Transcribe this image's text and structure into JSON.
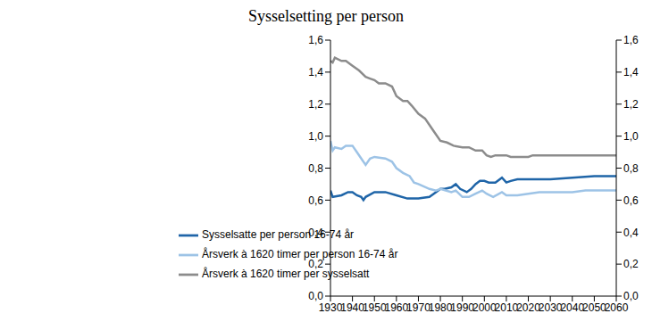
{
  "chart_data": {
    "type": "line",
    "title": "Sysselsetting per person",
    "xlim": [
      1930,
      2060
    ],
    "xticks": [
      1930,
      1940,
      1950,
      1960,
      1970,
      1980,
      1990,
      2000,
      2010,
      2020,
      2030,
      2040,
      2050,
      2060
    ],
    "ylim": [
      0,
      1.6
    ],
    "yticks": [
      {
        "value": 0,
        "label": "0,0"
      },
      {
        "value": 0.2,
        "label": "0,2"
      },
      {
        "value": 0.4,
        "label": "0,4"
      },
      {
        "value": 0.6,
        "label": "0,6"
      },
      {
        "value": 0.8,
        "label": "0,8"
      },
      {
        "value": 1.0,
        "label": "1,0"
      },
      {
        "value": 1.2,
        "label": "1,2"
      },
      {
        "value": 1.4,
        "label": "1,4"
      },
      {
        "value": 1.6,
        "label": "1,6"
      }
    ],
    "y2lim": [
      0,
      1.6
    ],
    "y2ticks": [
      {
        "value": 0,
        "label": "0,0"
      },
      {
        "value": 0.2,
        "label": "0,2"
      },
      {
        "value": 0.4,
        "label": "0,4"
      },
      {
        "value": 0.6,
        "label": "0,6"
      },
      {
        "value": 0.8,
        "label": "0,8"
      },
      {
        "value": 1.0,
        "label": "1,0"
      },
      {
        "value": 1.2,
        "label": "1,2"
      },
      {
        "value": 1.4,
        "label": "1,4"
      },
      {
        "value": 1.6,
        "label": "1,6"
      }
    ],
    "grid": false,
    "series": [
      {
        "name": "Sysselsatte per person 16-74 år",
        "color": "#1f65a8",
        "x": [
          1930,
          1931,
          1935,
          1938,
          1940,
          1942,
          1944,
          1945,
          1946,
          1950,
          1955,
          1960,
          1965,
          1970,
          1975,
          1978,
          1980,
          1982,
          1985,
          1987,
          1989,
          1992,
          1994,
          1996,
          1998,
          2000,
          2002,
          2005,
          2008,
          2010,
          2012,
          2015,
          2020,
          2030,
          2040,
          2050,
          2060
        ],
        "values": [
          0.66,
          0.62,
          0.63,
          0.65,
          0.65,
          0.63,
          0.62,
          0.6,
          0.62,
          0.65,
          0.65,
          0.63,
          0.61,
          0.61,
          0.62,
          0.65,
          0.67,
          0.67,
          0.68,
          0.7,
          0.67,
          0.65,
          0.67,
          0.7,
          0.72,
          0.72,
          0.71,
          0.71,
          0.74,
          0.71,
          0.72,
          0.73,
          0.73,
          0.73,
          0.74,
          0.75,
          0.75
        ]
      },
      {
        "name": "Årsverk à 1620 timer per person 16-74 år",
        "color": "#9dc3e6",
        "x": [
          1930,
          1931,
          1932,
          1935,
          1937,
          1940,
          1942,
          1944,
          1946,
          1948,
          1950,
          1955,
          1958,
          1960,
          1963,
          1966,
          1968,
          1970,
          1975,
          1978,
          1980,
          1985,
          1987,
          1990,
          1993,
          1996,
          1999,
          2001,
          2004,
          2008,
          2010,
          2015,
          2020,
          2025,
          2030,
          2040,
          2046,
          2060
        ],
        "values": [
          0.97,
          0.91,
          0.93,
          0.92,
          0.94,
          0.94,
          0.9,
          0.86,
          0.82,
          0.86,
          0.87,
          0.86,
          0.84,
          0.8,
          0.77,
          0.75,
          0.71,
          0.7,
          0.67,
          0.66,
          0.67,
          0.65,
          0.66,
          0.62,
          0.62,
          0.64,
          0.66,
          0.64,
          0.62,
          0.65,
          0.63,
          0.63,
          0.64,
          0.65,
          0.65,
          0.65,
          0.66,
          0.66
        ]
      },
      {
        "name": "Årsverk à 1620 timer per sysselsatt",
        "color": "#8c8c8c",
        "x": [
          1930,
          1931,
          1932,
          1935,
          1937,
          1940,
          1943,
          1946,
          1948,
          1950,
          1952,
          1955,
          1958,
          1960,
          1963,
          1965,
          1967,
          1970,
          1973,
          1975,
          1977,
          1980,
          1983,
          1986,
          1990,
          1993,
          1996,
          1999,
          2001,
          2003,
          2005,
          2010,
          2012,
          2020,
          2022,
          2060
        ],
        "values": [
          1.47,
          1.46,
          1.49,
          1.47,
          1.47,
          1.44,
          1.41,
          1.37,
          1.36,
          1.35,
          1.33,
          1.33,
          1.31,
          1.25,
          1.22,
          1.22,
          1.19,
          1.14,
          1.11,
          1.07,
          1.03,
          0.97,
          0.96,
          0.94,
          0.93,
          0.93,
          0.91,
          0.91,
          0.88,
          0.87,
          0.88,
          0.88,
          0.87,
          0.87,
          0.88,
          0.88
        ]
      }
    ]
  }
}
